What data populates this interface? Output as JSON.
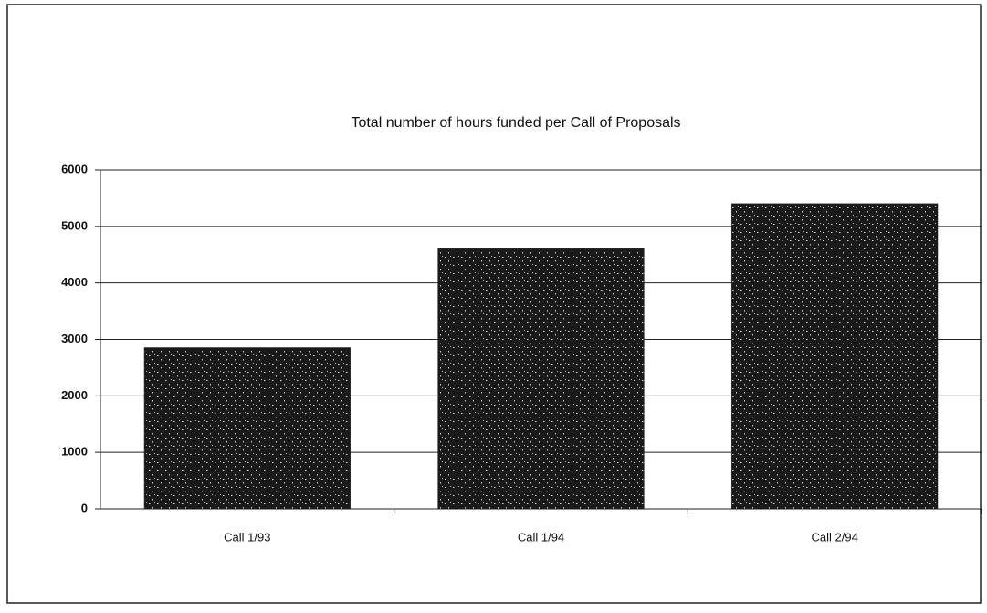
{
  "chart_data": {
    "type": "bar",
    "title": "Total number of hours funded per Call of Proposals",
    "categories": [
      "Call 1/93",
      "Call 1/94",
      "Call 2/94"
    ],
    "values": [
      2850,
      4600,
      5400
    ],
    "color": "#1a1a1a",
    "ylim": [
      0,
      6000
    ],
    "yticks": [
      0,
      1000,
      2000,
      3000,
      4000,
      5000,
      6000
    ],
    "grid": true
  }
}
